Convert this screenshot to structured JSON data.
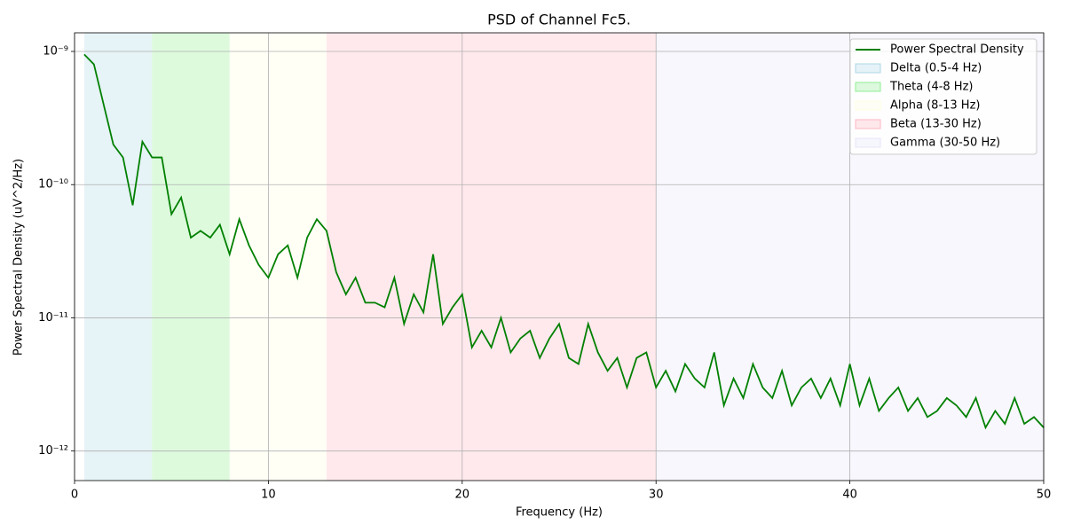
{
  "chart_data": {
    "type": "line",
    "title": "PSD of Channel Fc5.",
    "x_label": "Frequency (Hz)",
    "y_label": "Power Spectral Density (uV^2/Hz)",
    "yscale": "log",
    "grid": true,
    "legend": "upper right",
    "xlim": [
      0,
      50
    ],
    "xticks": [
      0,
      10,
      20,
      30,
      40,
      50
    ],
    "ylim": [
      6e-13,
      1.38e-09
    ],
    "yticks": [
      {
        "value": 1e-12,
        "label": "10⁻¹²"
      },
      {
        "value": 1e-11,
        "label": "10⁻¹¹"
      },
      {
        "value": 1e-10,
        "label": "10⁻¹⁰"
      },
      {
        "value": 1e-09,
        "label": "10⁻⁹"
      }
    ],
    "x": [
      0.5,
      1,
      1.5,
      2,
      2.5,
      3,
      3.5,
      4,
      4.5,
      5,
      5.5,
      6,
      6.5,
      7,
      7.5,
      8,
      8.5,
      9,
      9.5,
      10,
      10.5,
      11,
      11.5,
      12,
      12.5,
      13,
      13.5,
      14,
      14.5,
      15,
      15.5,
      16,
      16.5,
      17,
      17.5,
      18,
      18.5,
      19,
      19.5,
      20,
      20.5,
      21,
      21.5,
      22,
      22.5,
      23,
      23.5,
      24,
      24.5,
      25,
      25.5,
      26,
      26.5,
      27,
      27.5,
      28,
      28.5,
      29,
      29.5,
      30,
      30.5,
      31,
      31.5,
      32,
      32.5,
      33,
      33.5,
      34,
      34.5,
      35,
      35.5,
      36,
      36.5,
      37,
      37.5,
      38,
      38.5,
      39,
      39.5,
      40,
      40.5,
      41,
      41.5,
      42,
      42.5,
      43,
      43.5,
      44,
      44.5,
      45,
      45.5,
      46,
      46.5,
      47,
      47.5,
      48,
      48.5,
      49,
      49.5,
      50
    ],
    "series": [
      {
        "name": "Power Spectral Density",
        "color": "#008000",
        "values": [
          9.5e-10,
          8e-10,
          4e-10,
          2e-10,
          1.6e-10,
          7e-11,
          2.1e-10,
          1.6e-10,
          1.6e-10,
          6e-11,
          8e-11,
          4e-11,
          4.5e-11,
          4e-11,
          5e-11,
          3e-11,
          5.5e-11,
          3.5e-11,
          2.5e-11,
          2e-11,
          3e-11,
          3.5e-11,
          2e-11,
          4e-11,
          5.5e-11,
          4.5e-11,
          2.2e-11,
          1.5e-11,
          2e-11,
          1.3e-11,
          1.3e-11,
          1.2e-11,
          2e-11,
          9e-12,
          1.5e-11,
          1.1e-11,
          3e-11,
          9e-12,
          1.2e-11,
          1.5e-11,
          6e-12,
          8e-12,
          6e-12,
          1e-11,
          5.5e-12,
          7e-12,
          8e-12,
          5e-12,
          7e-12,
          9e-12,
          5e-12,
          4.5e-12,
          9e-12,
          5.5e-12,
          4e-12,
          5e-12,
          3e-12,
          5e-12,
          5.5e-12,
          3e-12,
          4e-12,
          2.8e-12,
          4.5e-12,
          3.5e-12,
          3e-12,
          5.5e-12,
          2.2e-12,
          3.5e-12,
          2.5e-12,
          4.5e-12,
          3e-12,
          2.5e-12,
          4e-12,
          2.2e-12,
          3e-12,
          3.5e-12,
          2.5e-12,
          3.5e-12,
          2.2e-12,
          4.5e-12,
          2.2e-12,
          3.5e-12,
          2e-12,
          2.5e-12,
          3e-12,
          2e-12,
          2.5e-12,
          1.8e-12,
          2e-12,
          2.5e-12,
          2.2e-12,
          1.8e-12,
          2.5e-12,
          1.5e-12,
          2e-12,
          1.6e-12,
          2.5e-12,
          1.6e-12,
          1.8e-12,
          1.5e-12
        ]
      }
    ],
    "bands": [
      {
        "name": "Delta (0.5-4 Hz)",
        "start": 0.5,
        "end": 4,
        "color": "#add8e6"
      },
      {
        "name": "Theta (4-8 Hz)",
        "start": 4,
        "end": 8,
        "color": "#90ee90"
      },
      {
        "name": "Alpha (8-13 Hz)",
        "start": 8,
        "end": 13,
        "color": "#ffffe0"
      },
      {
        "name": "Beta (13-30 Hz)",
        "start": 13,
        "end": 30,
        "color": "#ffb6c1"
      },
      {
        "name": "Gamma (30-50 Hz)",
        "start": 30,
        "end": 50,
        "color": "#e6e6fa"
      }
    ]
  }
}
